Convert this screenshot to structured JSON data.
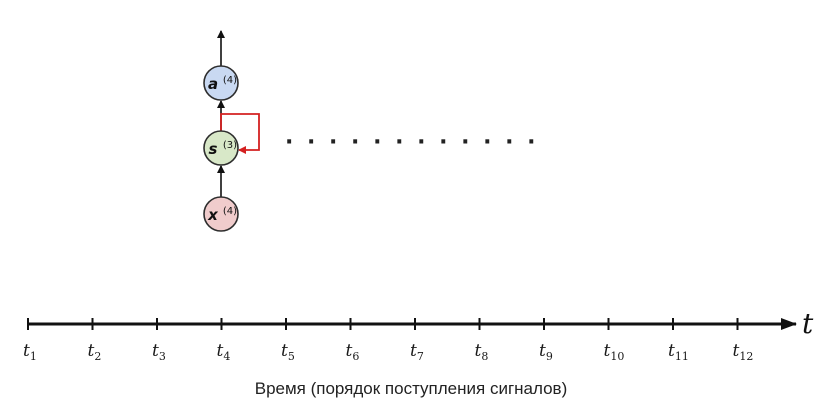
{
  "nodes": {
    "output": {
      "symbol": "a",
      "superscript": "(4)",
      "fill": "#c9d9f2"
    },
    "state": {
      "symbol": "s",
      "superscript": "(3)",
      "fill": "#d8e8c8"
    },
    "input": {
      "symbol": "x",
      "superscript": "(4)",
      "fill": "#f0cccc"
    }
  },
  "ellipsis": "· · · · · · · · · · · ·",
  "axis": {
    "variable": "t",
    "ticks": [
      {
        "base": "t",
        "sub": "1"
      },
      {
        "base": "t",
        "sub": "2"
      },
      {
        "base": "t",
        "sub": "3"
      },
      {
        "base": "t",
        "sub": "4"
      },
      {
        "base": "t",
        "sub": "5"
      },
      {
        "base": "t",
        "sub": "6"
      },
      {
        "base": "t",
        "sub": "7"
      },
      {
        "base": "t",
        "sub": "8"
      },
      {
        "base": "t",
        "sub": "9"
      },
      {
        "base": "t",
        "sub": "10"
      },
      {
        "base": "t",
        "sub": "11"
      },
      {
        "base": "t",
        "sub": "12"
      }
    ]
  },
  "caption": "Время (порядок поступления сигналов)",
  "colors": {
    "recurrent_arrow": "#d42020",
    "axis": "#111111"
  }
}
